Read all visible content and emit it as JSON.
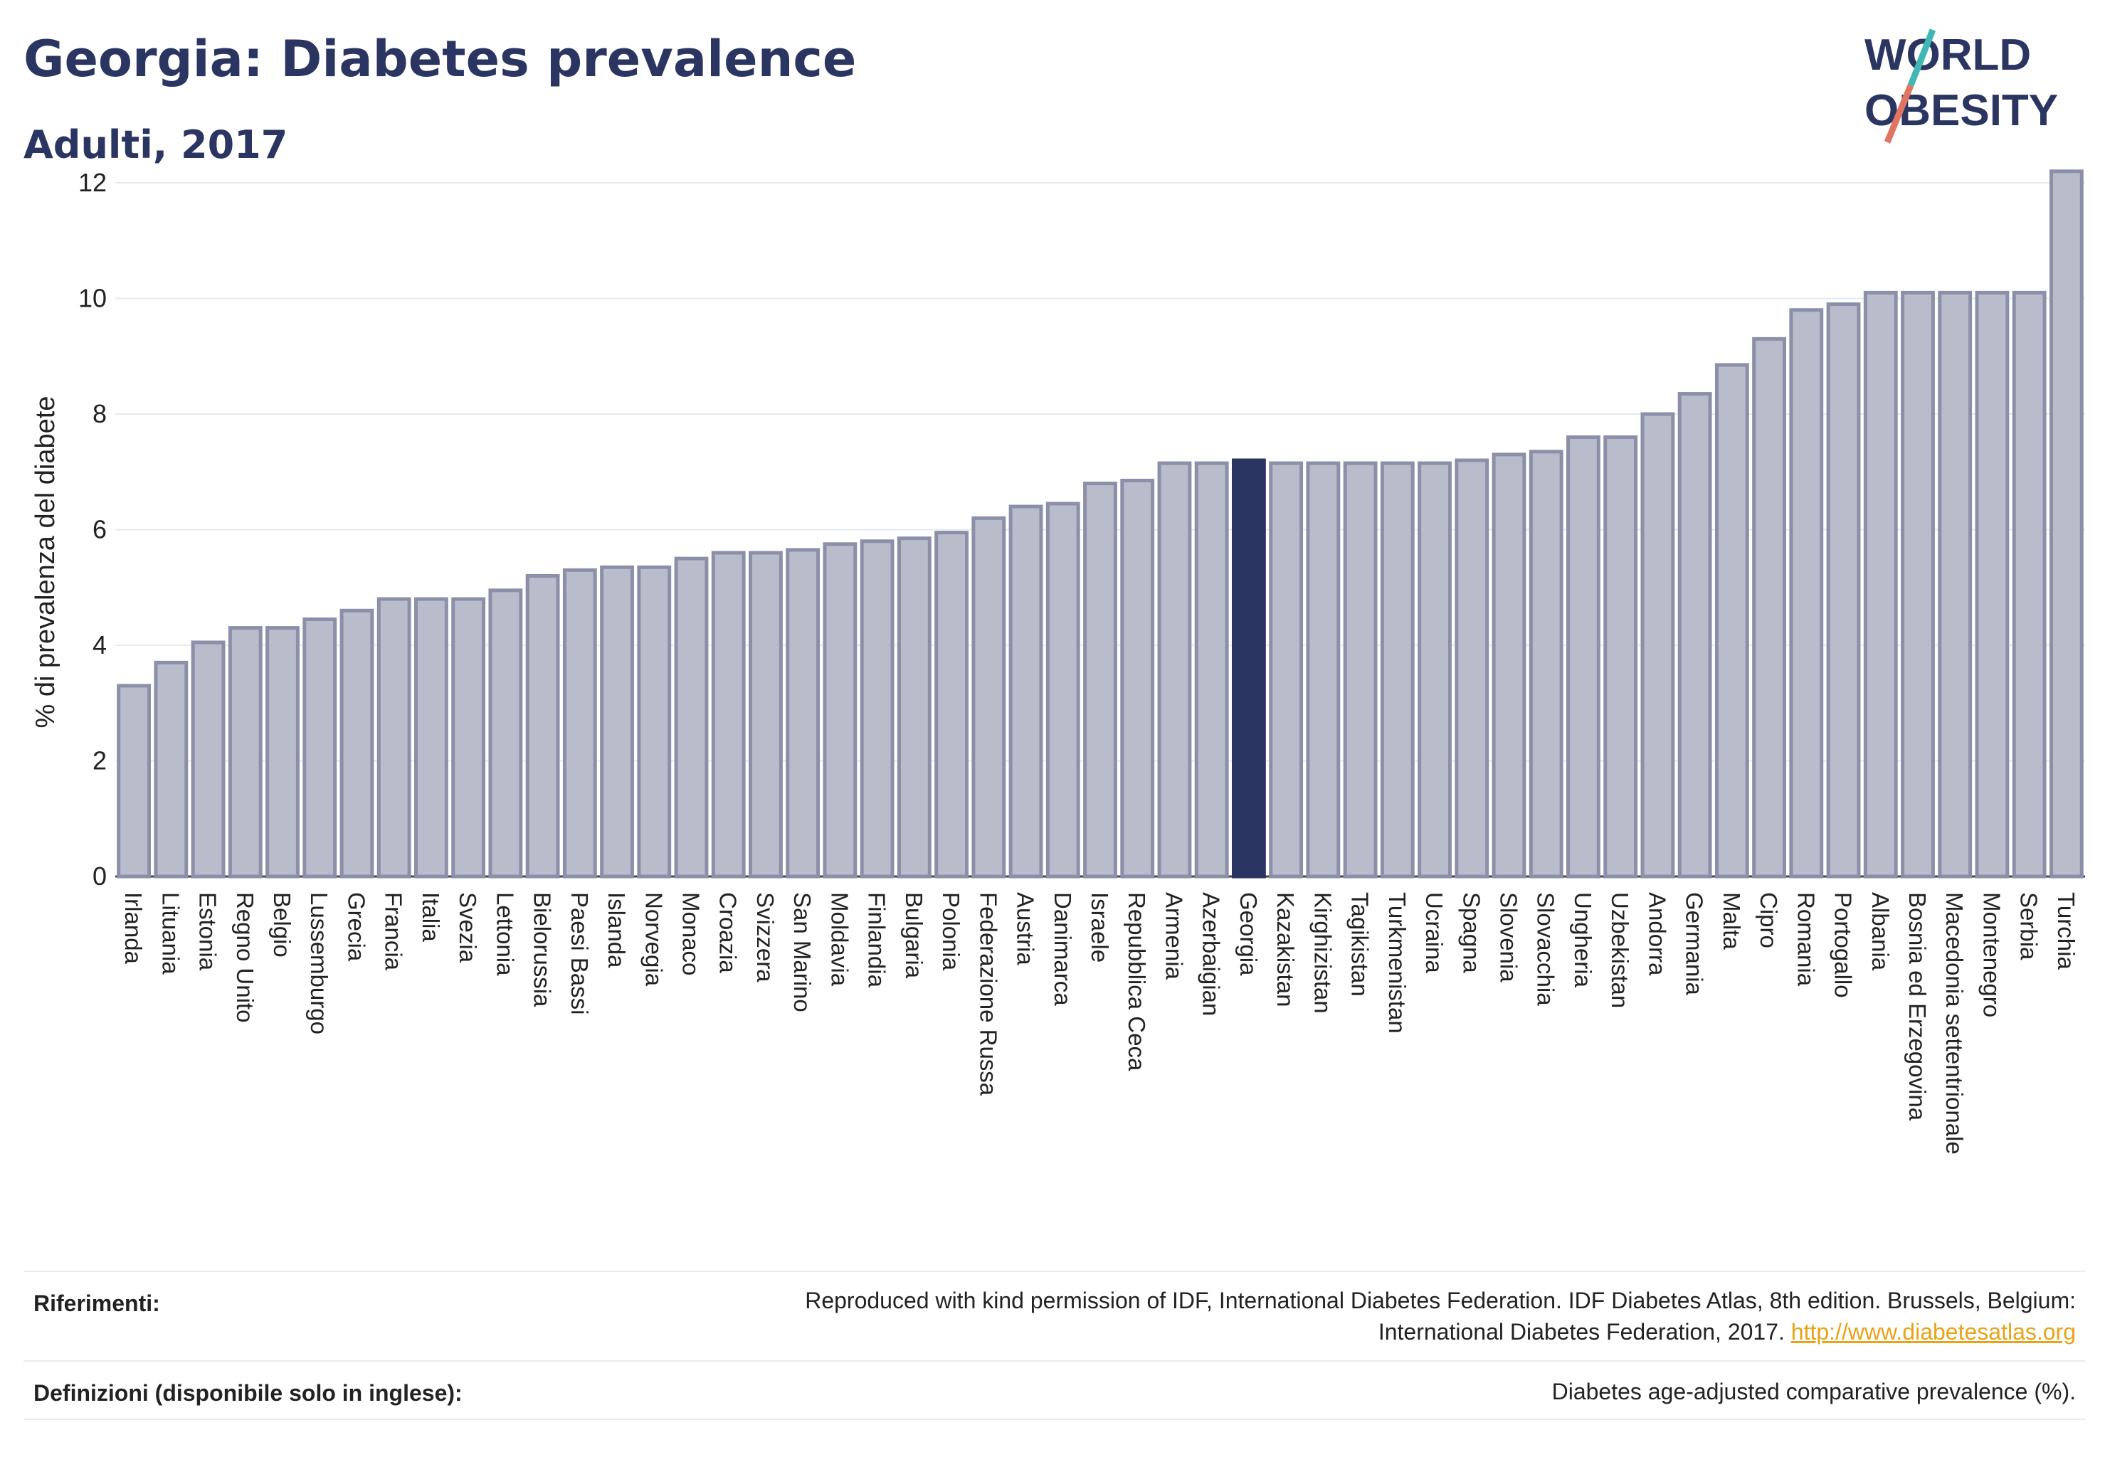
{
  "title": "Georgia: Diabetes prevalence",
  "subtitle": "Adulti, 2017",
  "logo": {
    "line1": "WORLD",
    "line2": "OBESITY"
  },
  "colors": {
    "bar": "#b9bccb",
    "bar_border": "#8b8fa8",
    "highlight": "#2b3561",
    "grid": "#e6e9ef",
    "title": "#2b3561",
    "link": "#e8a317"
  },
  "chart_data": {
    "type": "bar",
    "ylabel": "% di prevalenza del diabete",
    "xlabel": "",
    "ylim": [
      0,
      12.5
    ],
    "yticks": [
      0,
      2,
      4,
      6,
      8,
      10,
      12
    ],
    "grid": true,
    "highlight": "Georgia",
    "categories": [
      "Irlanda",
      "Lituania",
      "Estonia",
      "Regno Unito",
      "Belgio",
      "Lussemburgo",
      "Grecia",
      "Francia",
      "Italia",
      "Svezia",
      "Lettonia",
      "Bielorussia",
      "Paesi Bassi",
      "Islanda",
      "Norvegia",
      "Monaco",
      "Croazia",
      "Svizzera",
      "San Marino",
      "Moldavia",
      "Finlandia",
      "Bulgaria",
      "Polonia",
      "Federazione Russa",
      "Austria",
      "Danimarca",
      "Israele",
      "Repubblica Ceca",
      "Armenia",
      "Azerbaigian",
      "Georgia",
      "Kazakistan",
      "Kirghizistan",
      "Tagikistan",
      "Turkmenistan",
      "Ucraina",
      "Spagna",
      "Slovenia",
      "Slovacchia",
      "Ungheria",
      "Uzbekistan",
      "Andorra",
      "Germania",
      "Malta",
      "Cipro",
      "Romania",
      "Portogallo",
      "Albania",
      "Bosnia ed Erzegovina",
      "Macedonia settentrionale",
      "Montenegro",
      "Serbia",
      "Turchia"
    ],
    "values": [
      3.3,
      3.7,
      4.05,
      4.3,
      4.3,
      4.45,
      4.6,
      4.8,
      4.8,
      4.8,
      4.95,
      5.2,
      5.3,
      5.35,
      5.35,
      5.5,
      5.6,
      5.6,
      5.65,
      5.75,
      5.8,
      5.85,
      5.95,
      6.2,
      6.4,
      6.45,
      6.8,
      6.85,
      7.15,
      7.15,
      7.2,
      7.15,
      7.15,
      7.15,
      7.15,
      7.15,
      7.2,
      7.3,
      7.35,
      7.6,
      7.6,
      8.0,
      8.35,
      8.85,
      9.3,
      9.8,
      9.9,
      10.1,
      10.1,
      10.1,
      10.1,
      10.1,
      12.2
    ]
  },
  "footer": {
    "references_label": "Riferimenti:",
    "references_line1": "Reproduced with kind permission of IDF, International Diabetes Federation. IDF Diabetes Atlas, 8th edition. Brussels, Belgium:",
    "references_line2": "International Diabetes Federation, 2017.",
    "references_link": "http://www.diabetesatlas.org",
    "definitions_label": "Definizioni (disponibile solo in inglese):",
    "definitions_text": "Diabetes age-adjusted comparative prevalence (%)."
  }
}
